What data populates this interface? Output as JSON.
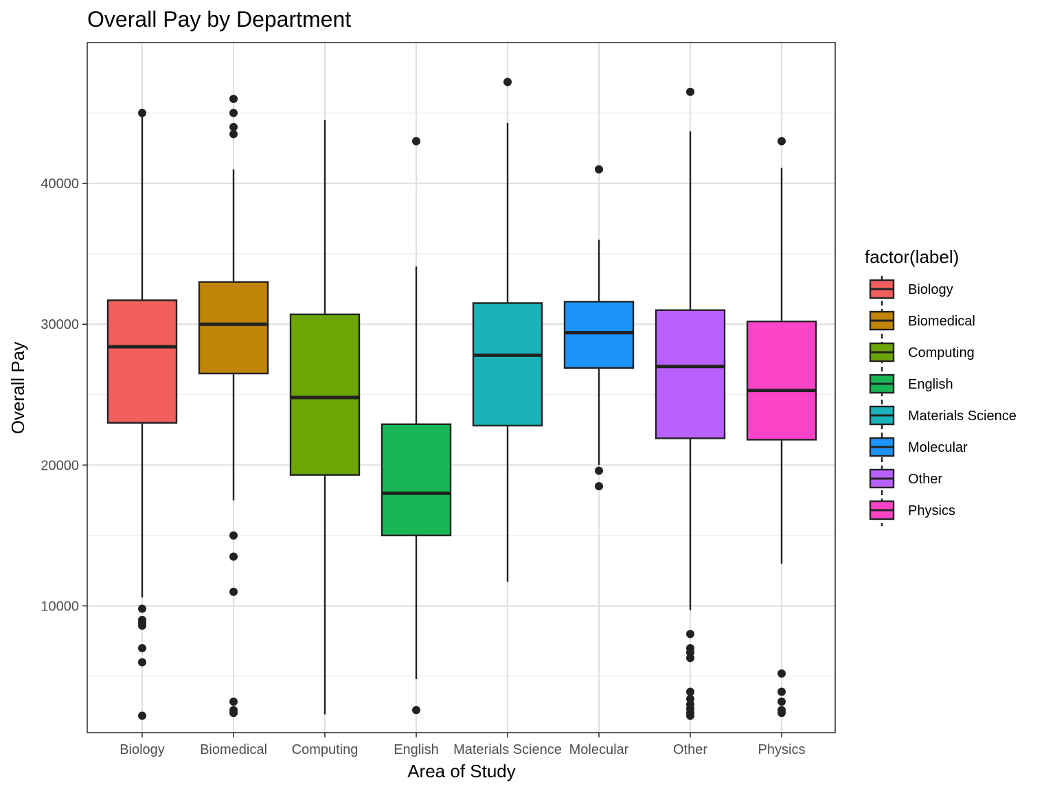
{
  "chart_data": {
    "type": "boxplot",
    "title": "Overall Pay by Department",
    "xlabel": "Area of Study",
    "ylabel": "Overall Pay",
    "ylim": [
      1000,
      50000
    ],
    "y_ticks": [
      10000,
      20000,
      30000,
      40000
    ],
    "grid": true,
    "legend": {
      "title": "factor(label)",
      "position": "right"
    },
    "categories": [
      "Biology",
      "Biomedical",
      "Computing",
      "English",
      "Materials Science",
      "Molecular",
      "Other",
      "Physics"
    ],
    "colors": [
      "#F8766D",
      "#C49A00",
      "#53B400",
      "#00C094",
      "#00B6EB",
      "#06A4FF",
      "#A58AFF",
      "#FB61D7"
    ],
    "series": [
      {
        "name": "Biology",
        "color": "#F25F5C",
        "min": 10600,
        "q1": 23000,
        "median": 28400,
        "q3": 31700,
        "max": 45000,
        "outliers": [
          45000,
          9800,
          9000,
          8800,
          8600,
          7000,
          6000,
          2200
        ]
      },
      {
        "name": "Biomedical",
        "color": "#C08406",
        "min": 17500,
        "q1": 26500,
        "median": 30000,
        "q3": 33000,
        "max": 41000,
        "outliers": [
          46000,
          45000,
          44000,
          43500,
          15000,
          13500,
          11000,
          3200,
          2600,
          2400
        ]
      },
      {
        "name": "Computing",
        "color": "#6BA506",
        "min": 2300,
        "q1": 19300,
        "median": 24800,
        "q3": 30700,
        "max": 44500,
        "outliers": []
      },
      {
        "name": "English",
        "color": "#19B657",
        "min": 4800,
        "q1": 15000,
        "median": 18000,
        "q3": 22900,
        "max": 34100,
        "outliers": [
          43000,
          2600
        ]
      },
      {
        "name": "Materials Science",
        "color": "#19B3B8",
        "min": 11700,
        "q1": 22800,
        "median": 27800,
        "q3": 31500,
        "max": 44300,
        "outliers": [
          47200
        ]
      },
      {
        "name": "Molecular",
        "color": "#1C94FC",
        "min": 20000,
        "q1": 26900,
        "median": 29400,
        "q3": 31600,
        "max": 36000,
        "outliers": [
          41000,
          19600,
          18500
        ]
      },
      {
        "name": "Other",
        "color": "#B961FE",
        "min": 9700,
        "q1": 21900,
        "median": 27000,
        "q3": 31000,
        "max": 43700,
        "outliers": [
          46500,
          8000,
          7000,
          6700,
          6300,
          3900,
          3400,
          3000,
          2700,
          2400,
          2200
        ]
      },
      {
        "name": "Physics",
        "color": "#FC44C9",
        "min": 13000,
        "q1": 21800,
        "median": 25300,
        "q3": 30200,
        "max": 41100,
        "outliers": [
          43000,
          5200,
          3900,
          3200,
          2600,
          2400
        ]
      }
    ]
  }
}
